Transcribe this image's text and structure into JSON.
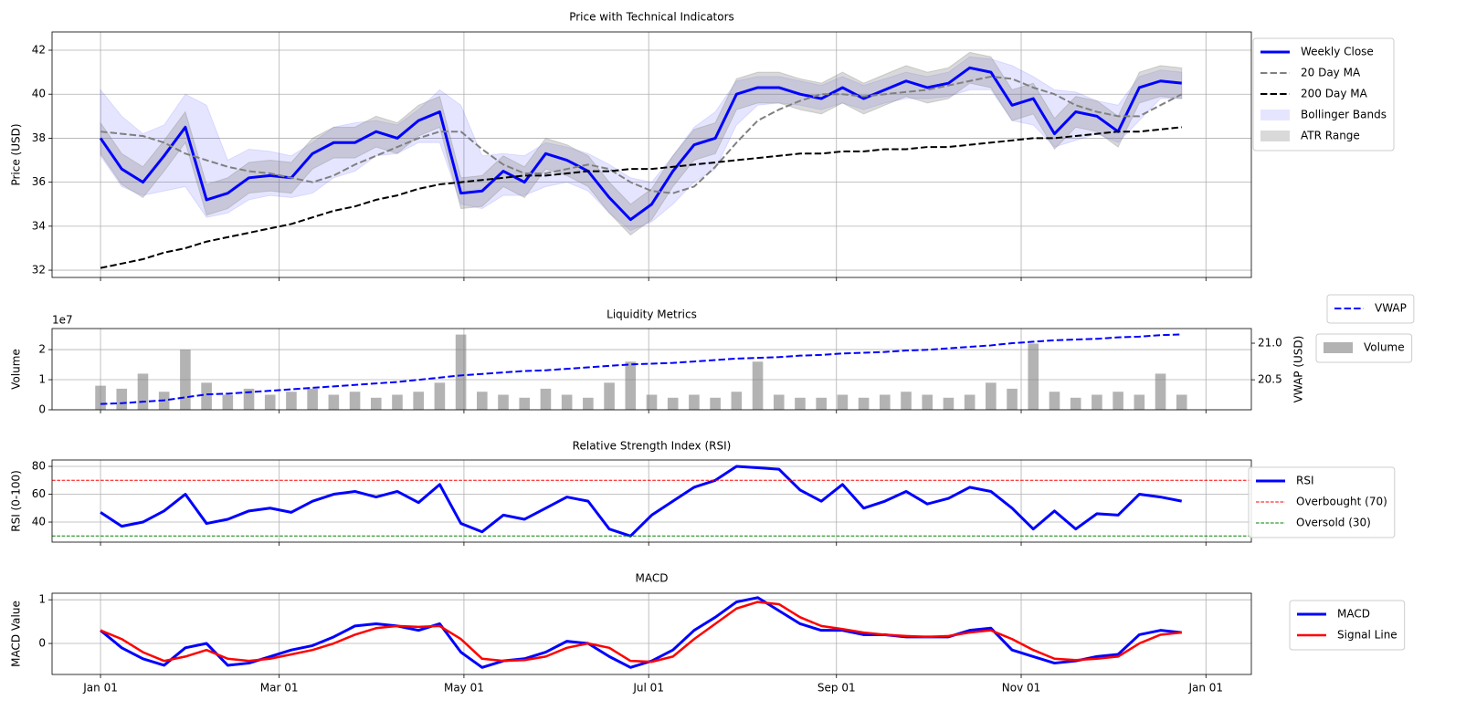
{
  "chart_data": [
    {
      "type": "line",
      "title": "Price with Technical Indicators",
      "ylabel": "Price (USD)",
      "grid": true,
      "legend": "outside-right",
      "x": [
        0,
        7,
        14,
        21,
        28,
        35,
        42,
        49,
        56,
        63,
        70,
        77,
        84,
        91,
        98,
        105,
        112,
        119,
        126,
        133,
        140,
        147,
        154,
        161,
        168,
        175,
        182,
        189,
        196,
        203,
        210,
        217,
        224,
        231,
        238,
        245,
        252,
        259,
        266,
        273,
        280,
        287,
        294,
        301,
        308,
        315,
        322,
        329,
        336,
        343,
        350,
        357
      ],
      "xlim": [
        -16,
        380
      ],
      "xticks": [
        0,
        59,
        120,
        181,
        243,
        304,
        365
      ],
      "ylim": [
        31.67,
        42.83
      ],
      "yticks": [
        32,
        34,
        36,
        38,
        40,
        42
      ],
      "series": [
        {
          "name": "Weekly Close",
          "type": "line",
          "color": "#0000ff",
          "linewidth": 3,
          "linestyle": "solid",
          "values": [
            38.0,
            36.6,
            36.0,
            37.2,
            38.5,
            35.2,
            35.5,
            36.2,
            36.3,
            36.2,
            37.3,
            37.8,
            37.8,
            38.3,
            38.0,
            38.8,
            39.2,
            35.5,
            35.6,
            36.5,
            36.0,
            37.3,
            37.0,
            36.5,
            35.3,
            34.3,
            35.0,
            36.5,
            37.7,
            38.0,
            40.0,
            40.3,
            40.3,
            40.0,
            39.8,
            40.3,
            39.8,
            40.2,
            40.6,
            40.3,
            40.5,
            41.2,
            41.0,
            39.5,
            39.8,
            38.2,
            39.2,
            39.0,
            38.3,
            40.3,
            40.6,
            40.5
          ]
        },
        {
          "name": "20 Day MA",
          "type": "line",
          "color": "#808080",
          "linewidth": 2,
          "linestyle": "dashed",
          "values": [
            38.3,
            38.2,
            38.1,
            37.8,
            37.3,
            37.0,
            36.7,
            36.5,
            36.4,
            36.2,
            36.0,
            36.3,
            36.8,
            37.2,
            37.6,
            38.0,
            38.3,
            38.3,
            37.5,
            36.8,
            36.4,
            36.4,
            36.6,
            36.8,
            36.6,
            36.0,
            35.6,
            35.5,
            35.8,
            36.7,
            37.8,
            38.8,
            39.3,
            39.7,
            40.0,
            40.0,
            39.9,
            40.0,
            40.1,
            40.2,
            40.4,
            40.6,
            40.8,
            40.7,
            40.3,
            40.0,
            39.5,
            39.2,
            39.0,
            39.0,
            39.5,
            40.0
          ]
        },
        {
          "name": "200 Day MA",
          "type": "line",
          "color": "#000000",
          "linewidth": 2,
          "linestyle": "dashed",
          "values": [
            32.1,
            32.3,
            32.5,
            32.8,
            33.0,
            33.3,
            33.5,
            33.7,
            33.9,
            34.1,
            34.4,
            34.7,
            34.9,
            35.2,
            35.4,
            35.7,
            35.9,
            36.0,
            36.1,
            36.2,
            36.3,
            36.3,
            36.4,
            36.5,
            36.5,
            36.6,
            36.6,
            36.7,
            36.8,
            36.9,
            37.0,
            37.1,
            37.2,
            37.3,
            37.3,
            37.4,
            37.4,
            37.5,
            37.5,
            37.6,
            37.6,
            37.7,
            37.8,
            37.9,
            38.0,
            38.0,
            38.1,
            38.2,
            38.3,
            38.3,
            38.4,
            38.5
          ]
        },
        {
          "name": "Bollinger Bands",
          "type": "band",
          "color": "#0000ff",
          "alpha": 0.1,
          "upper": [
            40.2,
            39.0,
            38.2,
            38.6,
            40.0,
            39.5,
            37.0,
            37.5,
            37.4,
            37.2,
            37.8,
            38.5,
            38.7,
            38.8,
            38.6,
            39.3,
            40.2,
            39.5,
            37.2,
            37.3,
            37.2,
            37.8,
            37.6,
            37.3,
            36.8,
            36.2,
            36.0,
            37.2,
            38.5,
            39.2,
            40.6,
            40.8,
            40.8,
            40.6,
            40.4,
            40.8,
            40.4,
            40.7,
            41.0,
            40.8,
            41.0,
            41.7,
            41.6,
            41.3,
            40.8,
            40.2,
            40.1,
            39.7,
            39.5,
            40.8,
            41.1,
            41.0
          ],
          "lower": [
            37.2,
            35.8,
            35.4,
            35.6,
            35.8,
            34.4,
            34.6,
            35.2,
            35.4,
            35.3,
            35.5,
            36.2,
            36.5,
            37.2,
            37.3,
            37.8,
            37.8,
            35.0,
            34.8,
            35.4,
            35.4,
            35.8,
            36.0,
            35.6,
            34.6,
            33.8,
            34.2,
            35.0,
            36.0,
            36.6,
            38.6,
            39.5,
            39.6,
            39.5,
            39.3,
            39.6,
            39.3,
            39.6,
            39.8,
            39.8,
            39.9,
            40.2,
            40.2,
            38.8,
            38.6,
            37.6,
            37.9,
            38.2,
            37.8,
            38.8,
            39.8,
            39.8
          ]
        },
        {
          "name": "ATR Range",
          "type": "band",
          "color": "#808080",
          "alpha": 0.3,
          "upper": [
            38.7,
            37.3,
            36.7,
            37.9,
            39.2,
            35.9,
            36.2,
            36.9,
            37.0,
            36.9,
            38.0,
            38.5,
            38.5,
            39.0,
            38.7,
            39.5,
            39.9,
            36.2,
            36.3,
            37.2,
            36.7,
            38.0,
            37.7,
            37.2,
            36.0,
            35.0,
            35.7,
            37.2,
            38.4,
            38.7,
            40.7,
            41.0,
            41.0,
            40.7,
            40.5,
            41.0,
            40.5,
            40.9,
            41.3,
            41.0,
            41.2,
            41.9,
            41.7,
            40.2,
            40.5,
            38.9,
            39.9,
            39.7,
            39.0,
            41.0,
            41.3,
            41.2
          ],
          "lower": [
            37.3,
            35.9,
            35.3,
            36.5,
            37.8,
            34.5,
            34.8,
            35.5,
            35.6,
            35.5,
            36.6,
            37.1,
            37.1,
            37.6,
            37.3,
            38.1,
            38.5,
            34.8,
            34.9,
            35.8,
            35.3,
            36.6,
            36.3,
            35.8,
            34.6,
            33.6,
            34.3,
            35.8,
            37.0,
            37.3,
            39.3,
            39.6,
            39.6,
            39.3,
            39.1,
            39.6,
            39.1,
            39.5,
            39.9,
            39.6,
            39.8,
            40.5,
            40.3,
            38.8,
            39.1,
            37.5,
            38.5,
            38.3,
            37.6,
            39.6,
            39.9,
            39.8
          ]
        }
      ]
    },
    {
      "type": "bar",
      "title": "Liquidity Metrics",
      "ylabel": "Volume",
      "y2label": "VWAP (USD)",
      "y_offset_label": "1e7",
      "grid": true,
      "legend": "outside-right",
      "x": [
        0,
        7,
        14,
        21,
        28,
        35,
        42,
        49,
        56,
        63,
        70,
        77,
        84,
        91,
        98,
        105,
        112,
        119,
        126,
        133,
        140,
        147,
        154,
        161,
        168,
        175,
        182,
        189,
        196,
        203,
        210,
        217,
        224,
        231,
        238,
        245,
        252,
        259,
        266,
        273,
        280,
        287,
        294,
        301,
        308,
        315,
        322,
        329,
        336,
        343,
        350,
        357
      ],
      "xlim": [
        -16,
        380
      ],
      "xticks": [
        0,
        59,
        120,
        181,
        243,
        304,
        365
      ],
      "ylim": [
        0,
        27000000
      ],
      "yticks": [
        0,
        {
          "value": 10000000,
          "label": "1"
        },
        {
          "value": 20000000,
          "label": "2"
        }
      ],
      "y2lim": [
        20.09,
        21.2
      ],
      "y2ticks": [
        20.5,
        {
          "value": 21,
          "label": "21.0"
        }
      ],
      "series": [
        {
          "name": "Volume",
          "type": "bar",
          "color": "#808080",
          "alpha": 0.6,
          "values": [
            8000000,
            7000000,
            12000000,
            6000000,
            20000000,
            9000000,
            5000000,
            7000000,
            5000000,
            6000000,
            7000000,
            5000000,
            6000000,
            4000000,
            5000000,
            6000000,
            9000000,
            25000000,
            6000000,
            5000000,
            4000000,
            7000000,
            5000000,
            4000000,
            9000000,
            16000000,
            5000000,
            4000000,
            5000000,
            4000000,
            6000000,
            16000000,
            5000000,
            4000000,
            4000000,
            5000000,
            4000000,
            5000000,
            6000000,
            5000000,
            4000000,
            5000000,
            9000000,
            7000000,
            22000000,
            6000000,
            4000000,
            5000000,
            6000000,
            5000000,
            12000000,
            5000000
          ]
        },
        {
          "name": "VWAP",
          "type": "line",
          "axis": "y2",
          "color": "#0000ff",
          "linewidth": 2,
          "linestyle": "dashed",
          "values": [
            20.17,
            20.18,
            20.2,
            20.22,
            20.26,
            20.3,
            20.31,
            20.33,
            20.35,
            20.37,
            20.39,
            20.41,
            20.43,
            20.45,
            20.47,
            20.5,
            20.53,
            20.56,
            20.58,
            20.6,
            20.62,
            20.63,
            20.65,
            20.67,
            20.69,
            20.71,
            20.72,
            20.73,
            20.75,
            20.77,
            20.79,
            20.8,
            20.81,
            20.83,
            20.84,
            20.86,
            20.87,
            20.88,
            20.9,
            20.91,
            20.93,
            20.95,
            20.97,
            21.0,
            21.02,
            21.04,
            21.05,
            21.06,
            21.08,
            21.09,
            21.11,
            21.12
          ]
        }
      ]
    },
    {
      "type": "line",
      "title": "Relative Strength Index (RSI)",
      "ylabel": "RSI (0-100)",
      "grid": true,
      "legend": "outside-right",
      "x": [
        0,
        7,
        14,
        21,
        28,
        35,
        42,
        49,
        56,
        63,
        70,
        77,
        84,
        91,
        98,
        105,
        112,
        119,
        126,
        133,
        140,
        147,
        154,
        161,
        168,
        175,
        182,
        189,
        196,
        203,
        210,
        217,
        224,
        231,
        238,
        245,
        252,
        259,
        266,
        273,
        280,
        287,
        294,
        301,
        308,
        315,
        322,
        329,
        336,
        343,
        350,
        357
      ],
      "xlim": [
        -16,
        380
      ],
      "xticks": [
        0,
        59,
        120,
        181,
        243,
        304,
        365
      ],
      "ylim": [
        25.6,
        84.6
      ],
      "yticks": [
        40,
        60,
        80
      ],
      "series": [
        {
          "name": "RSI",
          "type": "line",
          "color": "#0000ff",
          "linewidth": 3,
          "linestyle": "solid",
          "values": [
            47,
            37,
            40,
            48,
            60,
            39,
            42,
            48,
            50,
            47,
            55,
            60,
            62,
            58,
            62,
            54,
            67,
            39,
            33,
            45,
            42,
            50,
            58,
            55,
            35,
            30,
            45,
            55,
            65,
            70,
            80,
            79,
            78,
            63,
            55,
            67,
            50,
            55,
            62,
            53,
            57,
            65,
            62,
            50,
            35,
            48,
            35,
            46,
            45,
            60,
            58,
            55
          ]
        },
        {
          "name": "Overbought (70)",
          "type": "hline",
          "color": "#ff0000",
          "linewidth": 1,
          "linestyle": "dashed",
          "value": 70
        },
        {
          "name": "Oversold (30)",
          "type": "hline",
          "color": "#008000",
          "linewidth": 1,
          "linestyle": "dashed",
          "value": 30
        }
      ]
    },
    {
      "type": "line",
      "title": "MACD",
      "ylabel": "MACD Value",
      "grid": true,
      "legend": "outside-right",
      "x": [
        0,
        7,
        14,
        21,
        28,
        35,
        42,
        49,
        56,
        63,
        70,
        77,
        84,
        91,
        98,
        105,
        112,
        119,
        126,
        133,
        140,
        147,
        154,
        161,
        168,
        175,
        182,
        189,
        196,
        203,
        210,
        217,
        224,
        231,
        238,
        245,
        252,
        259,
        266,
        273,
        280,
        287,
        294,
        301,
        308,
        315,
        322,
        329,
        336,
        343,
        350,
        357
      ],
      "xlim": [
        -16,
        380
      ],
      "xticks": [
        {
          "value": 0,
          "label": "Jan 01"
        },
        {
          "value": 59,
          "label": "Mar 01"
        },
        {
          "value": 120,
          "label": "May 01"
        },
        {
          "value": 181,
          "label": "Jul 01"
        },
        {
          "value": 243,
          "label": "Sep 01"
        },
        {
          "value": 304,
          "label": "Nov 01"
        },
        {
          "value": 365,
          "label": "Jan 01"
        }
      ],
      "ylim": [
        -0.71,
        1.15
      ],
      "yticks": [
        0,
        1
      ],
      "series": [
        {
          "name": "MACD",
          "type": "line",
          "color": "#0000ff",
          "linewidth": 3,
          "linestyle": "solid",
          "values": [
            0.3,
            -0.1,
            -0.35,
            -0.5,
            -0.1,
            0.0,
            -0.5,
            -0.45,
            -0.3,
            -0.15,
            -0.05,
            0.15,
            0.4,
            0.45,
            0.4,
            0.3,
            0.45,
            -0.2,
            -0.55,
            -0.4,
            -0.35,
            -0.2,
            0.05,
            0.0,
            -0.3,
            -0.55,
            -0.4,
            -0.15,
            0.3,
            0.6,
            0.95,
            1.05,
            0.75,
            0.45,
            0.3,
            0.3,
            0.2,
            0.2,
            0.15,
            0.15,
            0.15,
            0.3,
            0.35,
            -0.15,
            -0.3,
            -0.45,
            -0.4,
            -0.3,
            -0.25,
            0.2,
            0.3,
            0.25
          ]
        },
        {
          "name": "Signal Line",
          "type": "line",
          "color": "#ff0000",
          "linewidth": 2.5,
          "linestyle": "solid",
          "values": [
            0.3,
            0.1,
            -0.2,
            -0.4,
            -0.3,
            -0.15,
            -0.35,
            -0.4,
            -0.35,
            -0.25,
            -0.15,
            0.0,
            0.2,
            0.35,
            0.4,
            0.38,
            0.4,
            0.1,
            -0.35,
            -0.4,
            -0.38,
            -0.3,
            -0.1,
            0.0,
            -0.1,
            -0.4,
            -0.42,
            -0.3,
            0.1,
            0.45,
            0.8,
            0.95,
            0.9,
            0.6,
            0.4,
            0.33,
            0.25,
            0.2,
            0.17,
            0.15,
            0.17,
            0.25,
            0.3,
            0.1,
            -0.15,
            -0.35,
            -0.38,
            -0.35,
            -0.3,
            0.0,
            0.2,
            0.25
          ]
        }
      ]
    }
  ]
}
